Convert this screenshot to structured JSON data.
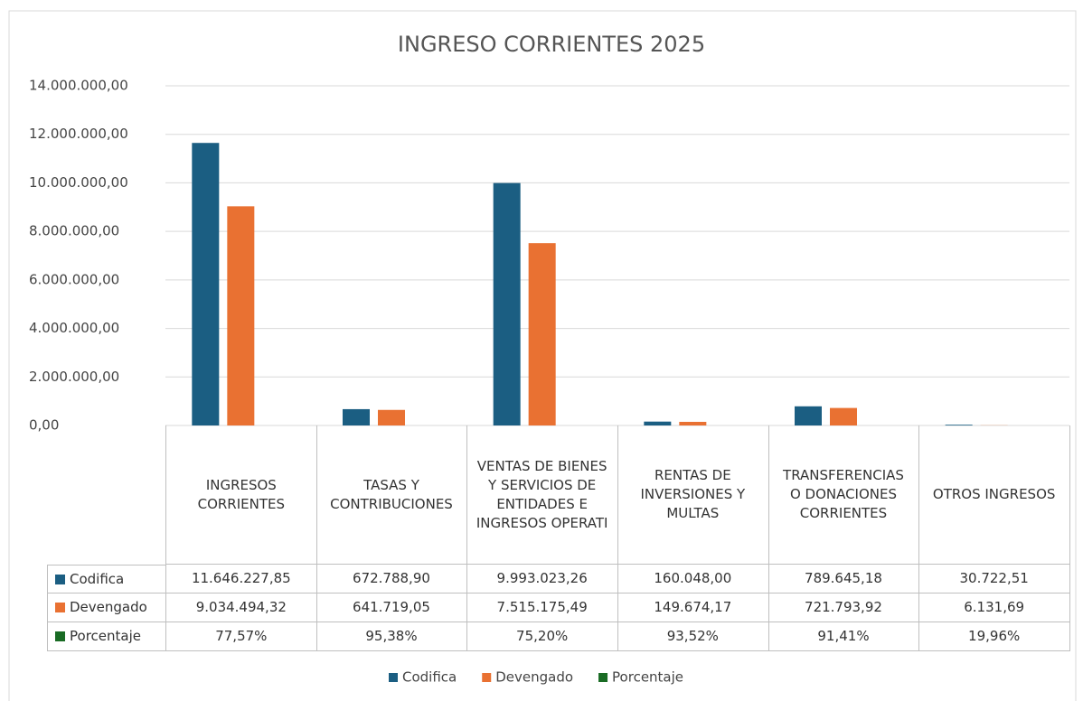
{
  "chart_data": {
    "type": "bar",
    "title": "INGRESO CORRIENTES 2025",
    "categories": [
      "INGRESOS CORRIENTES",
      "TASAS Y CONTRIBUCIONES",
      "VENTAS DE BIENES Y SERVICIOS DE ENTIDADES E INGRESOS OPERATI",
      "RENTAS DE INVERSIONES Y MULTAS",
      "TRANSFERENCIAS O DONACIONES CORRIENTES",
      "OTROS INGRESOS"
    ],
    "series": [
      {
        "name": "Codifica",
        "color": "#1b5e82",
        "values": [
          11646227.85,
          672788.9,
          9993023.26,
          160048.0,
          789645.18,
          30722.51
        ],
        "value_labels": [
          "11.646.227,85",
          "672.788,90",
          "9.993.023,26",
          "160.048,00",
          "789.645,18",
          "30.722,51"
        ]
      },
      {
        "name": "Devengado",
        "color": "#e97132",
        "values": [
          9034494.32,
          641719.05,
          7515175.49,
          149674.17,
          721793.92,
          6131.69
        ],
        "value_labels": [
          "9.034.494,32",
          "641.719,05",
          "7.515.175,49",
          "149.674,17",
          "721.793,92",
          "6.131,69"
        ]
      },
      {
        "name": "Porcentaje",
        "color": "#196b24",
        "values": [
          0.7757,
          0.9538,
          0.752,
          0.9352,
          0.9141,
          0.1996
        ],
        "value_labels": [
          "77,57%",
          "95,38%",
          "75,20%",
          "93,52%",
          "91,41%",
          "19,96%"
        ]
      }
    ],
    "ylim": [
      0,
      14000000
    ],
    "yticks": [
      {
        "value": 0,
        "label": "0,00"
      },
      {
        "value": 2000000,
        "label": "2.000.000,00"
      },
      {
        "value": 4000000,
        "label": "4.000.000,00"
      },
      {
        "value": 6000000,
        "label": "6.000.000,00"
      },
      {
        "value": 8000000,
        "label": "8.000.000,00"
      },
      {
        "value": 10000000,
        "label": "10.000.000,00"
      },
      {
        "value": 12000000,
        "label": "12.000.000,00"
      },
      {
        "value": 14000000,
        "label": "14.000.000,00"
      }
    ],
    "grid": true,
    "legend": "bottom",
    "data_table": true
  }
}
